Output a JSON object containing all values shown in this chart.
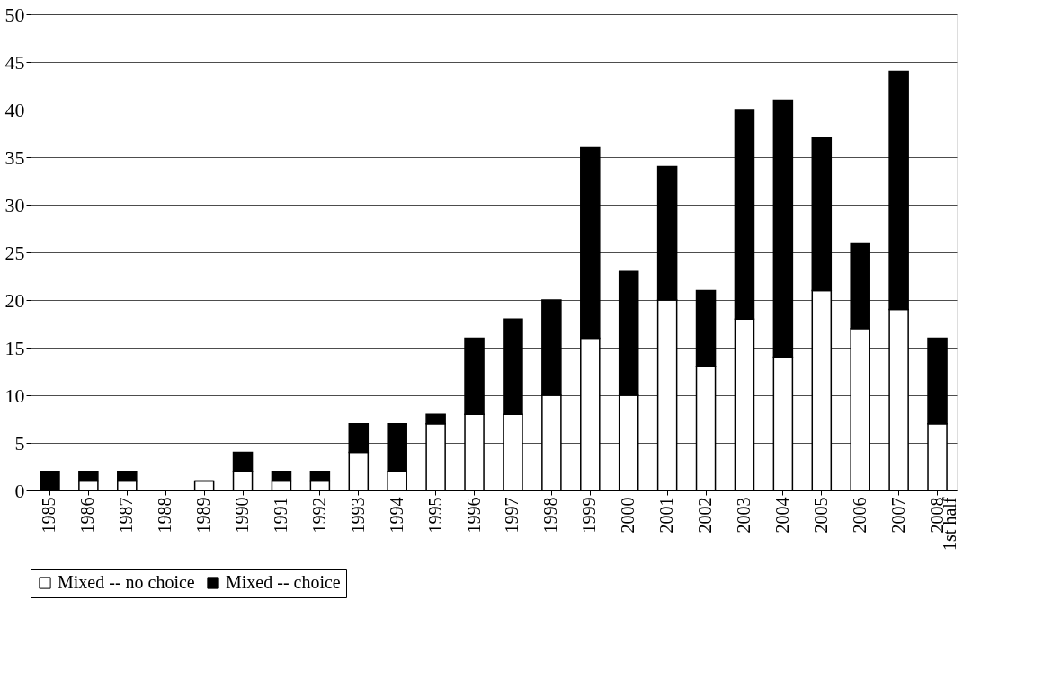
{
  "chart_data": {
    "type": "bar",
    "stacked": true,
    "categories": [
      "1985",
      "1986",
      "1987",
      "1988",
      "1989",
      "1990",
      "1991",
      "1992",
      "1993",
      "1994",
      "1995",
      "1996",
      "1997",
      "1998",
      "1999",
      "2000",
      "2001",
      "2002",
      "2003",
      "2004",
      "2005",
      "2006",
      "2007",
      "2008\n1st half"
    ],
    "series": [
      {
        "name": "Mixed -- no choice",
        "color": "#ffffff",
        "values": [
          0,
          1,
          1,
          0,
          1,
          2,
          1,
          1,
          4,
          2,
          7,
          8,
          8,
          10,
          16,
          10,
          20,
          13,
          18,
          14,
          21,
          17,
          19,
          7
        ]
      },
      {
        "name": "Mixed -- choice",
        "color": "#000000",
        "values": [
          2,
          1,
          1,
          0,
          0,
          2,
          1,
          1,
          3,
          5,
          1,
          8,
          10,
          10,
          20,
          13,
          14,
          8,
          22,
          27,
          16,
          9,
          25,
          9
        ]
      }
    ],
    "ylim": [
      0,
      50
    ],
    "yticks": [
      0,
      5,
      10,
      15,
      20,
      25,
      30,
      35,
      40,
      45,
      50
    ],
    "grid": "y",
    "legend": "bottom"
  }
}
